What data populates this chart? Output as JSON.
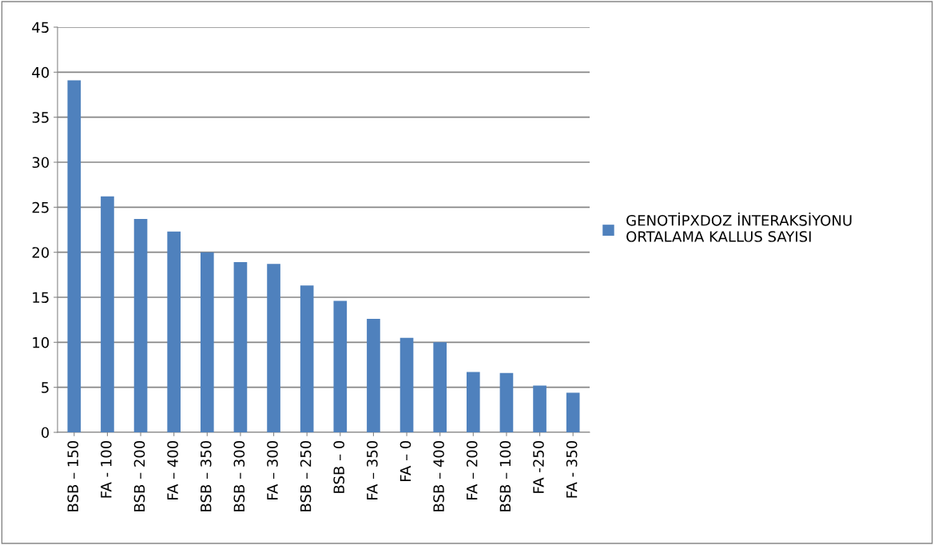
{
  "chart_data": {
    "type": "bar",
    "categories": [
      "BSB – 150",
      "FA - 100",
      "BSB – 200",
      "FA – 400",
      "BSB – 350",
      "BSB – 300",
      "FA – 300",
      "BSB – 250",
      "BSB – 0",
      "FA – 350",
      "FA – 0",
      "BSB – 400",
      "FA – 200",
      "BSB – 100",
      "FA -250",
      "FA - 350"
    ],
    "series": [
      {
        "name": "GENOTİPXDOZ İNTERAKSİYONU ORTALAMA KALLUS SAYISI",
        "color": "#4f81bd",
        "values": [
          39.1,
          26.2,
          23.7,
          22.3,
          20.0,
          18.9,
          18.7,
          16.3,
          14.6,
          12.6,
          10.5,
          10.0,
          6.7,
          6.6,
          5.2,
          4.4
        ]
      }
    ],
    "ylim": [
      0,
      45
    ],
    "yticks": [
      0,
      5,
      10,
      15,
      20,
      25,
      30,
      35,
      40,
      45
    ],
    "grid": "y",
    "legend": "right"
  }
}
